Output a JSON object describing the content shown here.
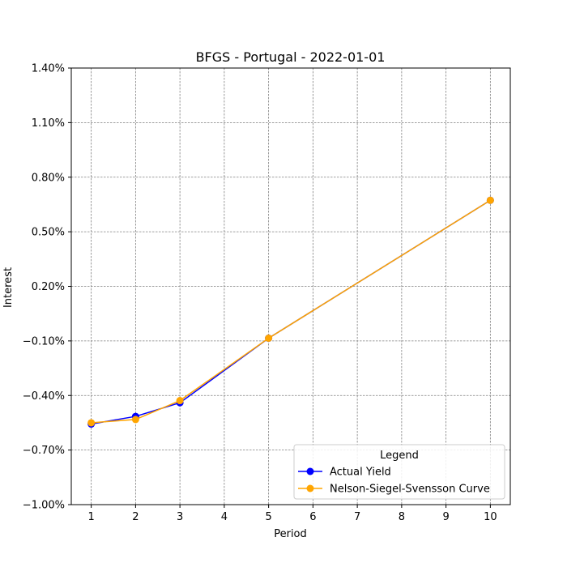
{
  "chart_data": {
    "type": "line",
    "title": "BFGS - Portugal - 2022-01-01",
    "xlabel": "Period",
    "ylabel": "Interest",
    "xlim": [
      0.55,
      10.45
    ],
    "ylim": [
      -1.0,
      1.4
    ],
    "x_ticks": [
      1,
      2,
      3,
      4,
      5,
      6,
      7,
      8,
      9,
      10
    ],
    "y_ticks": [
      -1.0,
      -0.7,
      -0.4,
      -0.1,
      0.2,
      0.5,
      0.8,
      1.1,
      1.4
    ],
    "y_tick_labels": [
      "−1.00%",
      "−0.70%",
      "−0.40%",
      "−0.10%",
      "0.20%",
      "0.50%",
      "0.80%",
      "1.10%",
      "1.40%"
    ],
    "grid": true,
    "legend": {
      "title": "Legend",
      "placement": "lower-right"
    },
    "series": [
      {
        "name": "Actual Yield",
        "color": "#0000ff",
        "x": [
          1,
          2,
          3,
          5,
          10
        ],
        "y": [
          -0.557,
          -0.515,
          -0.44,
          -0.085,
          0.673
        ]
      },
      {
        "name": "Nelson-Siegel-Svensson Curve",
        "color": "#ffa500",
        "x": [
          1,
          2,
          3,
          5,
          10
        ],
        "y": [
          -0.55,
          -0.532,
          -0.428,
          -0.085,
          0.673
        ]
      }
    ]
  }
}
